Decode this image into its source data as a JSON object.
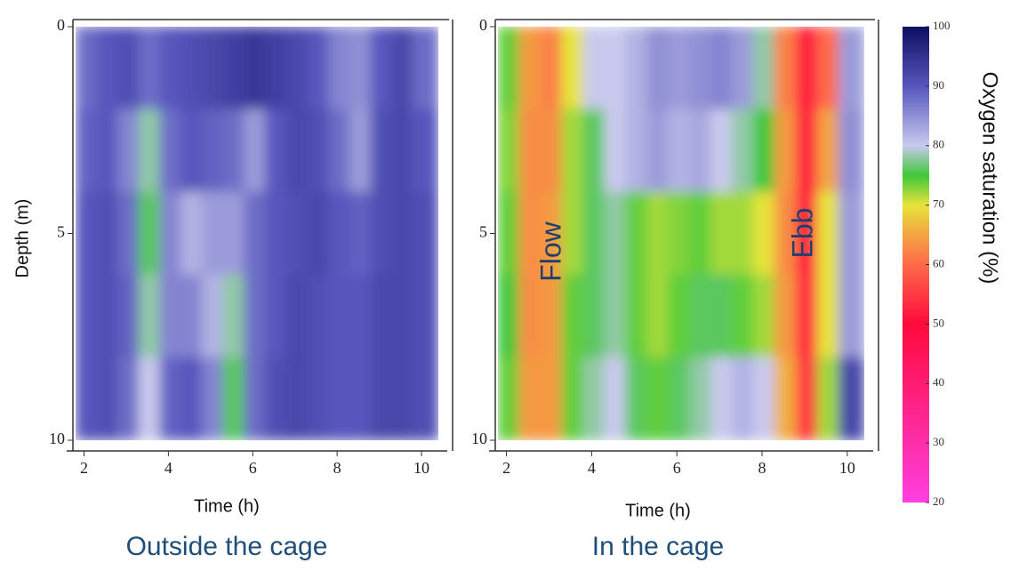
{
  "chart_data": [
    {
      "type": "heatmap",
      "title": "Outside the cage",
      "xlabel": "Time (h)",
      "ylabel": "Depth (m)",
      "x_edges": [
        1.8,
        2.3,
        2.8,
        3.3,
        3.8,
        4.3,
        4.8,
        5.3,
        5.8,
        6.3,
        6.8,
        7.3,
        7.8,
        8.3,
        8.8,
        9.3,
        9.8,
        10.4
      ],
      "y_edges": [
        0,
        2,
        4,
        6,
        8,
        10
      ],
      "z": [
        [
          88,
          90,
          91,
          88,
          90,
          91,
          92,
          93,
          94,
          93,
          92,
          90,
          86,
          85,
          90,
          92,
          88
        ],
        [
          89,
          90,
          86,
          78,
          88,
          90,
          89,
          88,
          84,
          90,
          92,
          91,
          88,
          84,
          91,
          92,
          90
        ],
        [
          90,
          91,
          88,
          76,
          86,
          82,
          84,
          84,
          88,
          90,
          91,
          92,
          90,
          89,
          91,
          92,
          91
        ],
        [
          90,
          91,
          89,
          78,
          86,
          86,
          82,
          78,
          88,
          90,
          92,
          91,
          90,
          90,
          92,
          92,
          91
        ],
        [
          90,
          91,
          88,
          80,
          89,
          90,
          86,
          76,
          88,
          91,
          92,
          91,
          90,
          90,
          92,
          92,
          91
        ]
      ],
      "xlim": [
        1.8,
        10.4
      ],
      "ylim": [
        0,
        10
      ],
      "xticks": [
        2,
        4,
        6,
        8,
        10
      ],
      "yticks": [
        0,
        5,
        10
      ]
    },
    {
      "type": "heatmap",
      "title": "In the cage",
      "xlabel": "Time (h)",
      "x_edges": [
        1.8,
        2.3,
        2.8,
        3.3,
        3.8,
        4.3,
        4.8,
        5.3,
        5.8,
        6.3,
        6.8,
        7.3,
        7.8,
        8.3,
        8.8,
        9.3,
        9.8,
        10.4
      ],
      "y_edges": [
        0,
        2,
        4,
        6,
        8,
        10
      ],
      "z": [
        [
          74,
          64,
          62,
          70,
          80,
          80,
          82,
          85,
          84,
          85,
          86,
          84,
          78,
          62,
          52,
          60,
          84
        ],
        [
          73,
          63,
          63,
          72,
          76,
          80,
          82,
          84,
          82,
          83,
          80,
          78,
          75,
          64,
          52,
          65,
          85
        ],
        [
          74,
          63,
          64,
          72,
          76,
          78,
          74,
          72,
          73,
          74,
          72,
          72,
          70,
          63,
          52,
          70,
          84
        ],
        [
          75,
          63,
          64,
          74,
          76,
          78,
          74,
          72,
          74,
          76,
          76,
          74,
          72,
          64,
          53,
          70,
          84
        ],
        [
          74,
          64,
          64,
          74,
          78,
          80,
          76,
          74,
          76,
          78,
          80,
          82,
          80,
          66,
          54,
          72,
          92
        ]
      ],
      "annotations": [
        "Flow",
        "Ebb"
      ],
      "xlim": [
        1.8,
        10.4
      ],
      "ylim": [
        0,
        10
      ],
      "xticks": [
        2,
        4,
        6,
        8,
        10
      ],
      "yticks": [
        0,
        5,
        10
      ]
    }
  ],
  "colorbar": {
    "label": "Oxygen saturation (%)",
    "lim": [
      20,
      100
    ],
    "ticks": [
      20,
      30,
      40,
      50,
      60,
      70,
      80,
      90,
      100
    ],
    "colorscale": [
      [
        20,
        "#ff3fe0"
      ],
      [
        50,
        "#ff0a3c"
      ],
      [
        60,
        "#ff6a4a"
      ],
      [
        66,
        "#f0b040"
      ],
      [
        70,
        "#e6e43a"
      ],
      [
        75,
        "#3ec83a"
      ],
      [
        80,
        "#c9c9ee"
      ],
      [
        90,
        "#5656bd"
      ],
      [
        100,
        "#0e0e62"
      ]
    ]
  }
}
